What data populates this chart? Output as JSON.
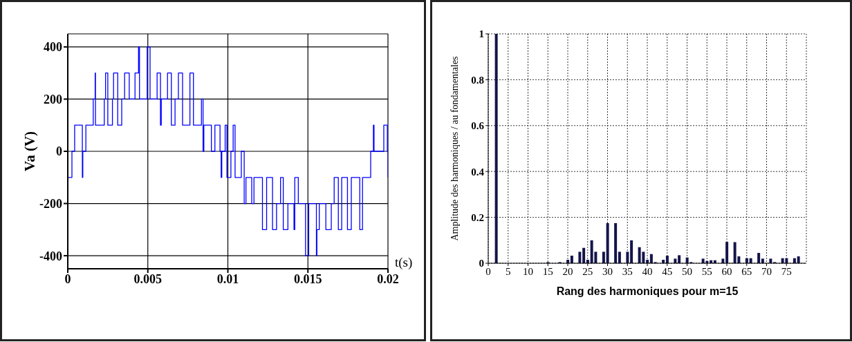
{
  "chart_data": [
    {
      "type": "step",
      "xlabel": "t(s)",
      "ylabel": "Va (V)",
      "xlim": [
        0,
        0.02
      ],
      "ylim": [
        -450,
        450
      ],
      "xticks": [
        0,
        0.005,
        0.01,
        0.015,
        0.02
      ],
      "yticks": [
        -400,
        -200,
        0,
        200,
        400
      ],
      "grid": true,
      "marker": "none",
      "series": [
        {
          "color": "#0000ff",
          "x": [
            0,
            0.00026,
            0.00043,
            0.00091,
            0.00094,
            0.00113,
            0.00159,
            0.00171,
            0.00173,
            0.00228,
            0.00236,
            0.0025,
            0.00279,
            0.00286,
            0.00312,
            0.00337,
            0.00355,
            0.00384,
            0.0042,
            0.00442,
            0.00448,
            0.00496,
            0.00514,
            0.00558,
            0.00579,
            0.00584,
            0.00623,
            0.00647,
            0.0067,
            0.00691,
            0.00717,
            0.00763,
            0.00785,
            0.00835,
            0.00845,
            0.0085,
            0.00897,
            0.00919,
            0.00951,
            0.00958,
            0.00962,
            0.00983,
            0.00994,
            0.01019,
            0.01033,
            0.01045,
            0.01084,
            0.01102,
            0.01113,
            0.01149,
            0.01163,
            0.01216,
            0.01242,
            0.01279,
            0.01304,
            0.01329,
            0.01346,
            0.01375,
            0.01413,
            0.01418,
            0.0144,
            0.01485,
            0.01505,
            0.01553,
            0.01556,
            0.01571,
            0.01612,
            0.01646,
            0.01664,
            0.0169,
            0.01711,
            0.01747,
            0.01771,
            0.01824,
            0.01841,
            0.01892,
            0.01909,
            0.01913,
            0.01974,
            0.01996,
            0.02
          ],
          "values": [
            -100,
            0,
            100,
            -100,
            0,
            100,
            200,
            300,
            100,
            200,
            300,
            100,
            200,
            300,
            100,
            200,
            300,
            200,
            300,
            400,
            200,
            400,
            200,
            300,
            100,
            200,
            300,
            100,
            200,
            300,
            100,
            300,
            100,
            200,
            0,
            100,
            0,
            100,
            0,
            -100,
            0,
            100,
            -100,
            0,
            100,
            -100,
            0,
            -200,
            -100,
            -200,
            -100,
            -300,
            -100,
            -300,
            -200,
            -100,
            -300,
            -200,
            -300,
            -100,
            -200,
            -400,
            -200,
            -400,
            -300,
            -200,
            -300,
            -200,
            -100,
            -300,
            -100,
            -300,
            -100,
            -300,
            -100,
            0,
            100,
            0,
            100,
            0,
            -100
          ]
        }
      ]
    },
    {
      "type": "bar",
      "xlabel": "Rang des harmoniques pour m=15",
      "ylabel": "Amplitude des harmoniques / au fondamentales",
      "xlim": [
        0,
        80
      ],
      "ylim": [
        0,
        1
      ],
      "xticks": [
        0,
        5,
        10,
        15,
        20,
        25,
        30,
        35,
        40,
        45,
        50,
        55,
        60,
        65,
        70,
        75
      ],
      "yticks": [
        0,
        0.2,
        0.4,
        0.6,
        0.8,
        1
      ],
      "grid": true,
      "series": [
        {
          "color": "#14144a",
          "x": [
            2,
            15,
            18,
            20,
            21,
            23,
            24,
            25,
            26,
            27,
            29,
            30,
            32,
            33,
            35,
            36,
            38,
            39,
            40,
            41,
            42,
            44,
            45,
            47,
            48,
            50,
            51,
            54,
            55,
            56,
            57,
            59,
            60,
            62,
            63,
            65,
            66,
            68,
            69,
            71,
            72,
            74,
            75,
            77,
            78
          ],
          "values": [
            1,
            0.005,
            0.005,
            0.015,
            0.033,
            0.05,
            0.067,
            0.015,
            0.1,
            0.05,
            0.05,
            0.175,
            0.175,
            0.05,
            0.05,
            0.1,
            0.07,
            0.05,
            0.015,
            0.04,
            0.005,
            0.015,
            0.033,
            0.02,
            0.035,
            0.025,
            0.005,
            0.02,
            0.01,
            0.013,
            0.013,
            0.02,
            0.093,
            0.092,
            0.03,
            0.022,
            0.022,
            0.045,
            0.02,
            0.02,
            0.005,
            0.022,
            0.022,
            0.022,
            0.03
          ]
        }
      ]
    }
  ]
}
